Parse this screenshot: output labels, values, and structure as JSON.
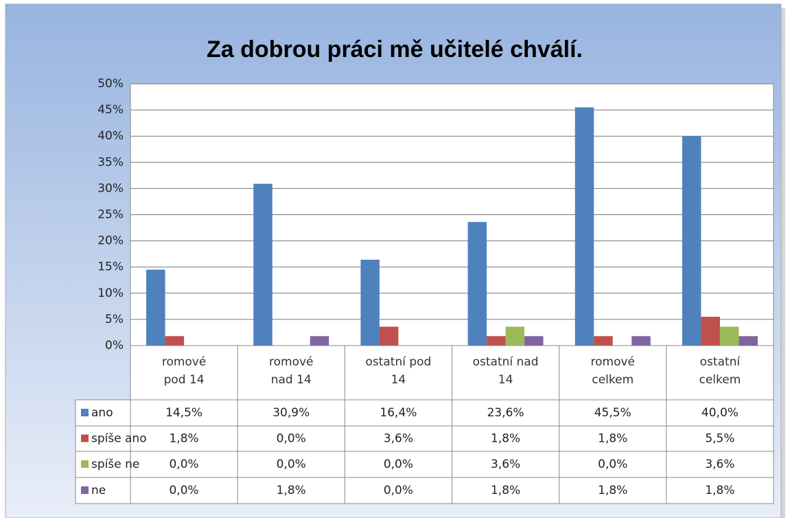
{
  "chart_data": {
    "type": "bar",
    "title": "Za dobrou práci mě učitelé chválí.",
    "categories": [
      "romové pod 14",
      "romové nad 14",
      "ostatní pod 14",
      "ostatní nad 14",
      "romové celkem",
      "ostatní celkem"
    ],
    "series": [
      {
        "name": "ano",
        "color": "#4f81bd",
        "values": [
          14.5,
          30.9,
          16.4,
          23.6,
          45.5,
          40.0
        ],
        "value_labels": [
          "14,5%",
          "30,9%",
          "16,4%",
          "23,6%",
          "45,5%",
          "40,0%"
        ]
      },
      {
        "name": "spíše ano",
        "color": "#c0504d",
        "values": [
          1.8,
          0.0,
          3.6,
          1.8,
          1.8,
          5.5
        ],
        "value_labels": [
          "1,8%",
          "0,0%",
          "3,6%",
          "1,8%",
          "1,8%",
          "5,5%"
        ]
      },
      {
        "name": "spíše ne",
        "color": "#9bbb59",
        "values": [
          0.0,
          0.0,
          0.0,
          3.6,
          0.0,
          3.6
        ],
        "value_labels": [
          "0,0%",
          "0,0%",
          "0,0%",
          "3,6%",
          "0,0%",
          "3,6%"
        ]
      },
      {
        "name": "ne",
        "color": "#8064a2",
        "values": [
          0.0,
          1.8,
          0.0,
          1.8,
          1.8,
          1.8
        ],
        "value_labels": [
          "0,0%",
          "1,8%",
          "0,0%",
          "1,8%",
          "1,8%",
          "1,8%"
        ]
      }
    ],
    "ylim": [
      0,
      50
    ],
    "yticks": [
      {
        "value": 0,
        "label": "0%"
      },
      {
        "value": 5,
        "label": "5%"
      },
      {
        "value": 10,
        "label": "10%"
      },
      {
        "value": 15,
        "label": "15%"
      },
      {
        "value": 20,
        "label": "20%"
      },
      {
        "value": 25,
        "label": "25%"
      },
      {
        "value": 30,
        "label": "30%"
      },
      {
        "value": 35,
        "label": "35%"
      },
      {
        "value": 40,
        "label": "40%"
      },
      {
        "value": 45,
        "label": "45%"
      },
      {
        "value": 50,
        "label": "50%"
      }
    ],
    "grid": true
  }
}
